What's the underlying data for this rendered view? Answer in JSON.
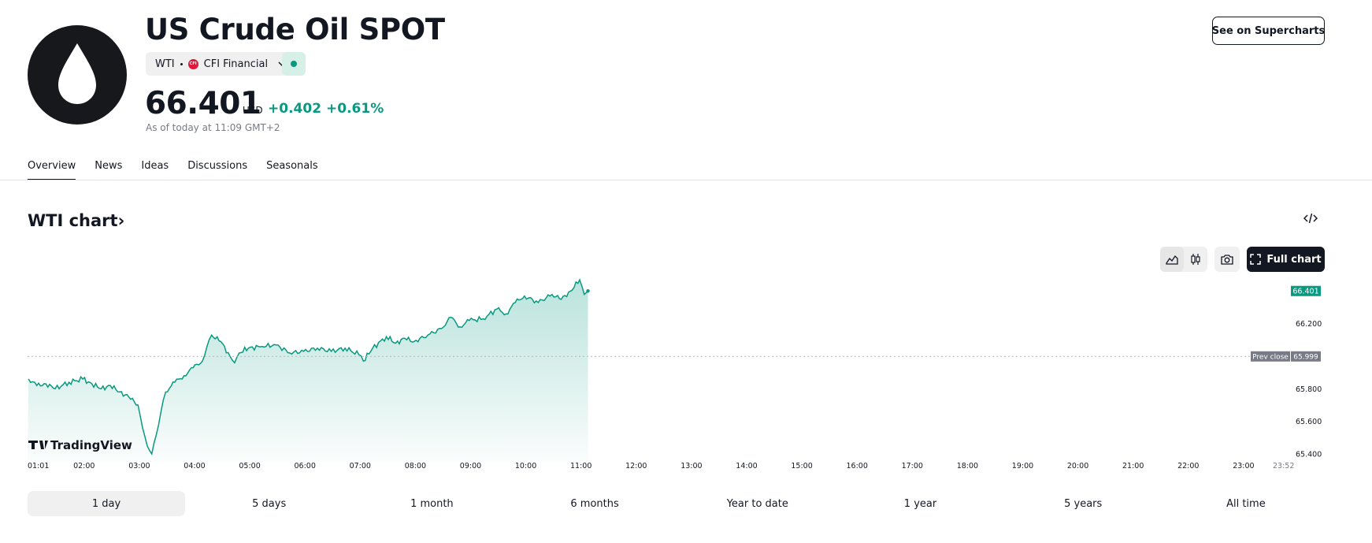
{
  "header": {
    "title": "US Crude Oil SPOT",
    "symbol": "WTI",
    "exchange_badge": "CFI",
    "exchange": "CFI Financial",
    "price": "66.401",
    "currency": "USD",
    "change": "+0.402",
    "change_pct": "+0.61%",
    "as_of": "As of today at 11:09 GMT+2",
    "supercharts_button": "See on Supercharts"
  },
  "tabs": [
    "Overview",
    "News",
    "Ideas",
    "Discussions",
    "Seasonals"
  ],
  "active_tab": "Overview",
  "chart_section": {
    "title": "WTI chart",
    "title_arrow": "›",
    "embed_icon": "code-icon",
    "full_chart_button": "Full chart",
    "watermark": "TradingView"
  },
  "colors": {
    "accent": "#089981",
    "area_fill": "#cfece4",
    "text": "#131722",
    "muted": "#787b86",
    "prev_close_tag": "#787b86"
  },
  "time_ranges": [
    "1 day",
    "5 days",
    "1 month",
    "6 months",
    "Year to date",
    "1 year",
    "5 years",
    "All time"
  ],
  "active_range": "1 day",
  "chart_data": {
    "type": "area",
    "x_ticks": [
      "01:01",
      "02:00",
      "03:00",
      "04:00",
      "05:00",
      "06:00",
      "07:00",
      "08:00",
      "09:00",
      "10:00",
      "11:00",
      "12:00",
      "13:00",
      "14:00",
      "15:00",
      "16:00",
      "17:00",
      "18:00",
      "19:00",
      "20:00",
      "21:00",
      "22:00",
      "23:00",
      "23:52"
    ],
    "y_ticks": [
      "66.200",
      "65.800",
      "65.600",
      "65.400"
    ],
    "ylim": [
      65.38,
      66.47
    ],
    "last_price_label": "66.401",
    "prev_close_label": "Prev close",
    "prev_close_value": "65.999",
    "prev_close": 65.999,
    "series": [
      {
        "x": [
          "01:01",
          "01:10",
          "01:20",
          "01:30",
          "01:45",
          "02:00",
          "02:10",
          "02:20",
          "02:30",
          "02:40",
          "02:50",
          "03:00",
          "03:05",
          "03:10",
          "03:15",
          "03:20",
          "03:25",
          "03:30",
          "03:40",
          "03:50",
          "04:00",
          "04:10",
          "04:15",
          "04:20",
          "04:30",
          "04:40",
          "04:45",
          "04:50",
          "05:00",
          "05:15",
          "05:30",
          "05:45",
          "06:00",
          "06:15",
          "06:30",
          "06:45",
          "07:00",
          "07:05",
          "07:15",
          "07:30",
          "07:40",
          "07:50",
          "08:00",
          "08:15",
          "08:30",
          "08:40",
          "08:50",
          "09:00",
          "09:15",
          "09:30",
          "09:40",
          "09:50",
          "10:00",
          "10:15",
          "10:30",
          "10:40",
          "10:50",
          "11:00",
          "11:05",
          "11:09"
        ],
        "values": [
          65.86,
          65.82,
          65.83,
          65.8,
          65.84,
          65.86,
          65.83,
          65.8,
          65.82,
          65.78,
          65.75,
          65.7,
          65.56,
          65.45,
          65.4,
          65.52,
          65.66,
          65.78,
          65.84,
          65.88,
          65.93,
          65.97,
          66.06,
          66.13,
          66.09,
          66.0,
          65.96,
          66.02,
          66.05,
          66.06,
          66.07,
          66.02,
          66.03,
          66.05,
          66.03,
          66.05,
          66.01,
          65.97,
          66.05,
          66.12,
          66.08,
          66.11,
          66.09,
          66.13,
          66.17,
          66.24,
          66.18,
          66.22,
          66.23,
          66.29,
          66.26,
          66.33,
          66.37,
          66.33,
          66.38,
          66.35,
          66.4,
          66.47,
          66.38,
          66.401
        ]
      }
    ]
  }
}
